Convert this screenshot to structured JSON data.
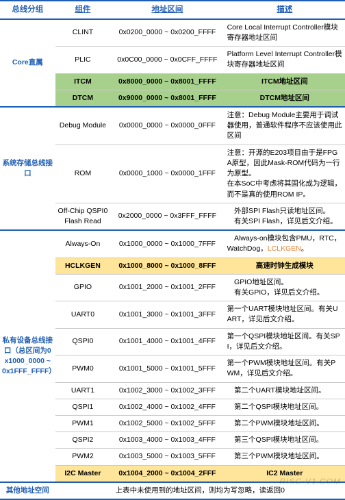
{
  "header": {
    "c1": "总线分组",
    "c2": "组件",
    "c3": "地址区间",
    "c4": "描述"
  },
  "watermark": "RISC-V1.COM",
  "colors": {
    "blue": "#1f5db3",
    "green_hl": "#a8d08d",
    "yellow_hl": "#ffe599",
    "orange": "#ed7d31"
  },
  "groups": {
    "g1": {
      "label": "Core直属",
      "rows": {
        "r1": {
          "comp": "CLINT",
          "addr": "0x0200_0000 ~ 0x0200_FFFF",
          "desc": "Core Local Interrupt Controller模块寄存器地址区间"
        },
        "r2": {
          "comp": "PLIC",
          "addr": "0x0C00_0000 ~ 0x0CFF_FFFF",
          "desc": "Platform Level Interrupt Controller模块寄存器地址区间"
        },
        "r3": {
          "comp": "ITCM",
          "addr": "0x8000_0000 ~ 0x8001_FFFF",
          "desc": "ITCM地址区间"
        },
        "r4": {
          "comp": "DTCM",
          "addr": "0x9000_0000 ~ 0x8001_FFFF",
          "desc": "DTCM地址区间"
        }
      }
    },
    "g2": {
      "label": "系统存储总线接口",
      "rows": {
        "r1": {
          "comp": "Debug Module",
          "addr": "0x0000_0000 ~ 0x0000_0FFF",
          "desc": "注意：Debug Module主要用于调试器使用，普通软件程序不应该使用此区间"
        },
        "r2": {
          "comp": "ROM",
          "addr": "0x0000_1000 ~ 0x0000_1FFF",
          "desc": "注意：开源的E203项目由于是FPGA原型，因此Mask-ROM代码为一行为原型。\n在本SoC中考虑将其固化成为逻辑，而不是真的使用ROM IP。"
        },
        "r3": {
          "comp": "Off-Chip QSPI0 Flash Read",
          "addr": "0x2000_0000 ~ 0x3FFF_FFFF",
          "desc": "　外部SPI Flash只读地址区间。\n　有关SPI Flash，详见后文介绍。"
        }
      }
    },
    "g3": {
      "label": "私有设备总线接口（总区间为0x1000_0000 ~ 0x1FFF_FFFF）",
      "rows": {
        "r1": {
          "comp": "Always-On",
          "addr": "0x1000_0000 ~ 0x1000_7FFF",
          "desc_pre": "　Always-on模块包含PMU，RTC，WatchDog，",
          "desc_orange": "LCLKGEN",
          "desc_post": "。"
        },
        "r2": {
          "comp": "HCLKGEN",
          "addr": "0x1000_8000 ~ 0x1000_8FFF",
          "desc": "高速时钟生成模块"
        },
        "r3": {
          "comp": "GPIO",
          "addr": "0x1001_2000 ~ 0x1001_2FFF",
          "desc": "　GPIO地址区间。\n　有关GPIO，详见后文介绍。"
        },
        "r4": {
          "comp": "UART0",
          "addr": "0x1001_3000 ~ 0x1001_3FFF",
          "desc": "第一个UART模块地址区间。有关UART，详见后文介绍。"
        },
        "r5": {
          "comp": "QSPI0",
          "addr": "0x1001_4000 ~ 0x1001_4FFF",
          "desc": "第一个QSPI模块地址区间。有关SPI，详见后文介绍。"
        },
        "r6": {
          "comp": "PWM0",
          "addr": "0x1001_5000 ~ 0x1001_5FFF",
          "desc": "第一个PWM模块地址区间。有关PWM，详见后文介绍。"
        },
        "r7": {
          "comp": "UART1",
          "addr": "0x1002_3000 ~ 0x1002_3FFF",
          "desc": "　第二个UART模块地址区间。"
        },
        "r8": {
          "comp": "QSPI1",
          "addr": "0x1002_4000 ~ 0x1002_4FFF",
          "desc": "　第二个QSPI模块地址区间。"
        },
        "r9": {
          "comp": "PWM1",
          "addr": "0x1002_5000 ~ 0x1002_5FFF",
          "desc": "　第二个PWM模块地址区间。"
        },
        "r10": {
          "comp": "QSPI2",
          "addr": "0x1003_4000 ~ 0x1003_4FFF",
          "desc": "　第三个QSPI模块地址区间。"
        },
        "r11": {
          "comp": "PWM2",
          "addr": "0x1003_5000 ~ 0x1003_5FFF",
          "desc": "　第三个PWM模块地址区间。"
        },
        "r12": {
          "comp": "I2C Master",
          "addr": "0x1004_2000 ~ 0x1004_2FFF",
          "desc": "IC2 Master"
        }
      }
    },
    "g4": {
      "label": "其他地址空间",
      "desc": "上表中未使用到的地址区间，则均为写忽略，读返回0"
    }
  }
}
